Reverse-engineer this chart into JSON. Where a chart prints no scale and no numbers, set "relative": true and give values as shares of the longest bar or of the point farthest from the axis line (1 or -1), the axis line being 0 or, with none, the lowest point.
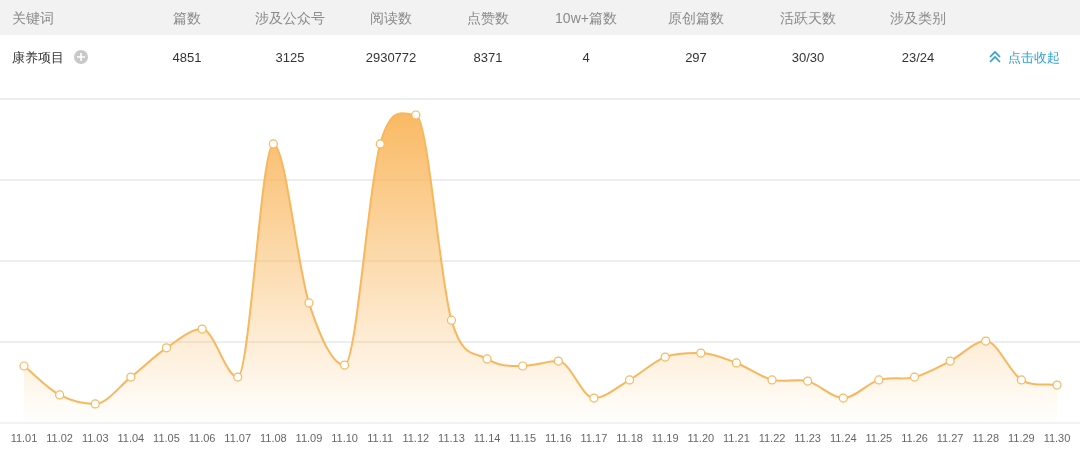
{
  "chart_data": [
    {
      "type": "other",
      "categories": [
        "关键词",
        "篇数",
        "涉及公众号",
        "阅读数",
        "点赞数",
        "10w+篇数",
        "原创篇数",
        "活跃天数",
        "涉及类别"
      ],
      "cell_labels": [
        [
          "康养项目",
          "4851",
          "3125",
          "2930772",
          "8371",
          "4",
          "297",
          "30/30",
          "23/24"
        ]
      ],
      "annotations": [
        "点击收起"
      ]
    },
    {
      "type": "area",
      "relative": true,
      "grid": "y",
      "marker": "circle",
      "color": "#f9b65c",
      "categories": [
        "11.01",
        "11.02",
        "11.03",
        "11.04",
        "11.05",
        "11.06",
        "11.07",
        "11.08",
        "11.09",
        "11.10",
        "11.11",
        "11.12",
        "11.13",
        "11.14",
        "11.15",
        "11.16",
        "11.17",
        "11.18",
        "11.19",
        "11.20",
        "11.21",
        "11.22",
        "11.23",
        "11.24",
        "11.25",
        "11.26",
        "11.27",
        "11.28",
        "11.29",
        "11.30"
      ],
      "values": [
        0.185,
        0.091,
        0.062,
        0.149,
        0.244,
        0.305,
        0.149,
        0.906,
        0.39,
        0.188,
        0.906,
        1,
        0.334,
        0.208,
        0.185,
        0.201,
        0.081,
        0.14,
        0.214,
        0.227,
        0.195,
        0.14,
        0.136,
        0.081,
        0.14,
        0.149,
        0.201,
        0.266,
        0.14,
        0.123
      ]
    }
  ]
}
